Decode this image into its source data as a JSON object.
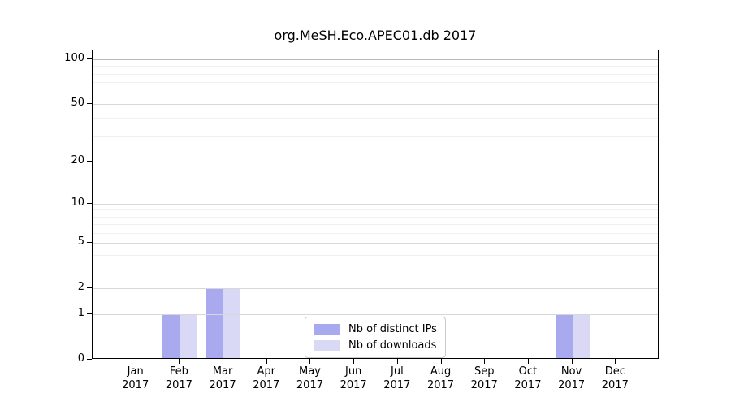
{
  "chart_data": {
    "type": "bar",
    "title": "org.MeSH.Eco.APEC01.db 2017",
    "categories": [
      "Jan 2017",
      "Feb 2017",
      "Mar 2017",
      "Apr 2017",
      "May 2017",
      "Jun 2017",
      "Jul 2017",
      "Aug 2017",
      "Sep 2017",
      "Oct 2017",
      "Nov 2017",
      "Dec 2017"
    ],
    "series": [
      {
        "name": "Nb of distinct IPs",
        "color": "#a9a9ef",
        "values": [
          0,
          1,
          2,
          0,
          0,
          0,
          0,
          0,
          0,
          0,
          1,
          0
        ]
      },
      {
        "name": "Nb of downloads",
        "color": "#d9d9f6",
        "values": [
          0,
          1,
          2,
          0,
          0,
          0,
          0,
          0,
          0,
          0,
          1,
          0
        ]
      }
    ],
    "yscale": "log1p",
    "ylim": [
      0,
      115
    ],
    "yticks_major": [
      0,
      1,
      2,
      5,
      10,
      20,
      50,
      100
    ],
    "yticks_minor": [
      3,
      4,
      6,
      7,
      8,
      9,
      30,
      40,
      60,
      70,
      80,
      90
    ],
    "xlabel": "",
    "ylabel": "",
    "grid": true,
    "legend_position": "lower center"
  },
  "colors": {
    "grid_major": "#d7d7d7",
    "grid_minor": "#f0f0f0",
    "grid_top": "#b9b9b9",
    "spine": "#000000",
    "background": "#ffffff"
  }
}
